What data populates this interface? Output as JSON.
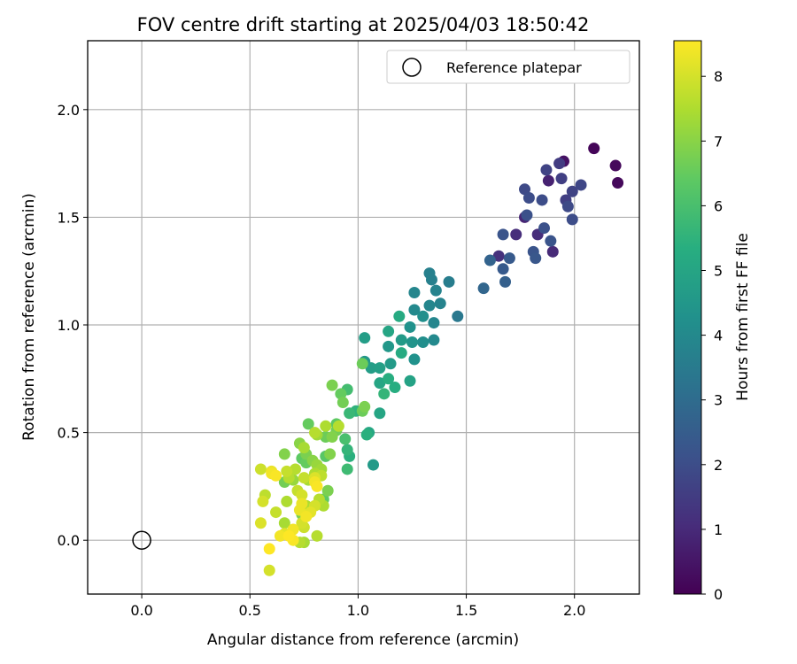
{
  "chart_data": {
    "type": "scatter",
    "title": "FOV centre drift starting at 2025/04/03 18:50:42",
    "xlabel": "Angular distance from reference (arcmin)",
    "ylabel": "Rotation from reference (arcmin)",
    "xlim": [
      -0.25,
      2.3
    ],
    "ylim": [
      -0.25,
      2.32
    ],
    "xticks": [
      0.0,
      0.5,
      1.0,
      1.5,
      2.0
    ],
    "xtick_labels": [
      "0.0",
      "0.5",
      "1.0",
      "1.5",
      "2.0"
    ],
    "yticks": [
      0.0,
      0.5,
      1.0,
      1.5,
      2.0
    ],
    "ytick_labels": [
      "0.0",
      "0.5",
      "1.0",
      "1.5",
      "2.0"
    ],
    "grid": true,
    "legend": {
      "placement": "top-right",
      "entries": [
        "Reference platepar"
      ]
    },
    "colorbar": {
      "label": "Hours from first FF file",
      "range": [
        0,
        8.55
      ],
      "ticks": [
        0,
        1,
        2,
        3,
        4,
        5,
        6,
        7,
        8
      ],
      "tick_labels": [
        "0",
        "1",
        "2",
        "3",
        "4",
        "5",
        "6",
        "7",
        "8"
      ],
      "colormap": "viridis"
    },
    "reference_point": {
      "name": "Reference platepar",
      "x": 0.0,
      "y": 0.0
    },
    "series": [
      {
        "points": [
          [
            2.09,
            1.82,
            0.1
          ],
          [
            2.19,
            1.74,
            0.2
          ],
          [
            2.2,
            1.66,
            0.2
          ],
          [
            1.95,
            1.76,
            0.4
          ],
          [
            1.88,
            1.67,
            0.8
          ],
          [
            1.77,
            1.5,
            0.9
          ],
          [
            1.73,
            1.42,
            1.1
          ],
          [
            1.9,
            1.34,
            1.0
          ],
          [
            1.65,
            1.32,
            1.2
          ],
          [
            1.83,
            1.42,
            1.1
          ],
          [
            1.93,
            1.75,
            1.5
          ],
          [
            1.87,
            1.72,
            1.7
          ],
          [
            1.94,
            1.68,
            1.6
          ],
          [
            2.03,
            1.65,
            1.8
          ],
          [
            1.99,
            1.62,
            1.7
          ],
          [
            1.96,
            1.58,
            1.6
          ],
          [
            1.97,
            1.55,
            1.9
          ],
          [
            1.99,
            1.49,
            2.0
          ],
          [
            1.77,
            1.63,
            1.9
          ],
          [
            1.79,
            1.59,
            2.0
          ],
          [
            1.85,
            1.58,
            2.0
          ],
          [
            1.78,
            1.51,
            2.1
          ],
          [
            1.86,
            1.45,
            2.1
          ],
          [
            1.89,
            1.39,
            2.2
          ],
          [
            1.81,
            1.34,
            2.2
          ],
          [
            1.82,
            1.31,
            2.3
          ],
          [
            1.67,
            1.42,
            2.2
          ],
          [
            1.7,
            1.31,
            2.4
          ],
          [
            1.67,
            1.26,
            2.4
          ],
          [
            1.68,
            1.2,
            2.6
          ],
          [
            1.58,
            1.17,
            2.8
          ],
          [
            1.61,
            1.3,
            2.7
          ],
          [
            1.46,
            1.04,
            3.4
          ],
          [
            1.42,
            1.2,
            3.6
          ],
          [
            1.33,
            1.24,
            3.7
          ],
          [
            1.34,
            1.21,
            3.7
          ],
          [
            1.36,
            1.16,
            3.8
          ],
          [
            1.38,
            1.1,
            3.8
          ],
          [
            1.33,
            1.09,
            3.9
          ],
          [
            1.26,
            1.15,
            3.9
          ],
          [
            1.26,
            1.07,
            4.0
          ],
          [
            1.35,
            1.01,
            3.9
          ],
          [
            1.35,
            0.93,
            4.0
          ],
          [
            1.3,
            1.04,
            4.2
          ],
          [
            1.24,
            0.99,
            4.3
          ],
          [
            1.3,
            0.92,
            4.2
          ],
          [
            1.25,
            0.92,
            4.4
          ],
          [
            1.26,
            0.84,
            4.3
          ],
          [
            1.2,
            0.93,
            4.6
          ],
          [
            1.14,
            0.9,
            4.5
          ],
          [
            1.15,
            0.82,
            4.6
          ],
          [
            1.1,
            0.8,
            4.8
          ],
          [
            1.06,
            0.8,
            4.7
          ],
          [
            1.03,
            0.83,
            4.5
          ],
          [
            1.03,
            0.94,
            4.7
          ],
          [
            1.14,
            0.97,
            5.0
          ],
          [
            1.19,
            1.04,
            5.2
          ],
          [
            1.2,
            0.87,
            5.2
          ],
          [
            1.24,
            0.74,
            4.9
          ],
          [
            1.07,
            0.35,
            4.6
          ],
          [
            1.1,
            0.73,
            5.0
          ],
          [
            1.14,
            0.75,
            5.3
          ],
          [
            1.17,
            0.71,
            5.3
          ],
          [
            1.12,
            0.68,
            5.6
          ],
          [
            1.1,
            0.59,
            5.0
          ],
          [
            1.05,
            0.5,
            5.1
          ],
          [
            1.04,
            0.49,
            5.4
          ],
          [
            0.99,
            0.6,
            5.5
          ],
          [
            0.96,
            0.59,
            5.7
          ],
          [
            0.96,
            0.39,
            5.4
          ],
          [
            0.95,
            0.42,
            5.6
          ],
          [
            0.95,
            0.33,
            5.8
          ],
          [
            0.94,
            0.47,
            6.0
          ],
          [
            0.95,
            0.7,
            5.9
          ],
          [
            0.92,
            0.68,
            6.5
          ],
          [
            0.93,
            0.64,
            6.7
          ],
          [
            0.88,
            0.72,
            6.8
          ],
          [
            1.02,
            0.6,
            6.6
          ],
          [
            1.03,
            0.62,
            6.8
          ],
          [
            1.02,
            0.82,
            6.6
          ],
          [
            0.9,
            0.54,
            6.4
          ],
          [
            0.9,
            0.51,
            6.7
          ],
          [
            0.85,
            0.53,
            7.5
          ],
          [
            0.91,
            0.53,
            7.6
          ],
          [
            0.85,
            0.48,
            6.6
          ],
          [
            0.88,
            0.48,
            6.9
          ],
          [
            0.87,
            0.4,
            6.9
          ],
          [
            0.85,
            0.39,
            6.3
          ],
          [
            0.81,
            0.49,
            7.3
          ],
          [
            0.8,
            0.5,
            7.6
          ],
          [
            0.77,
            0.54,
            6.5
          ],
          [
            0.73,
            0.45,
            7.0
          ],
          [
            0.75,
            0.43,
            7.4
          ],
          [
            0.76,
            0.4,
            6.8
          ],
          [
            0.74,
            0.38,
            6.4
          ],
          [
            0.76,
            0.36,
            6.5
          ],
          [
            0.79,
            0.37,
            7.0
          ],
          [
            0.81,
            0.35,
            7.2
          ],
          [
            0.83,
            0.33,
            7.3
          ],
          [
            0.86,
            0.23,
            6.8
          ],
          [
            0.83,
            0.3,
            7.7
          ],
          [
            0.8,
            0.29,
            8.1
          ],
          [
            0.8,
            0.27,
            8.4
          ],
          [
            0.81,
            0.25,
            8.5
          ],
          [
            0.8,
            0.31,
            7.5
          ],
          [
            0.77,
            0.28,
            7.4
          ],
          [
            0.75,
            0.29,
            7.8
          ],
          [
            0.71,
            0.33,
            7.6
          ],
          [
            0.67,
            0.32,
            7.8
          ],
          [
            0.68,
            0.29,
            7.6
          ],
          [
            0.7,
            0.28,
            7.2
          ],
          [
            0.66,
            0.27,
            6.7
          ],
          [
            0.66,
            0.4,
            6.9
          ],
          [
            0.72,
            0.23,
            7.8
          ],
          [
            0.74,
            0.21,
            8.0
          ],
          [
            0.74,
            0.17,
            8.3
          ],
          [
            0.76,
            0.16,
            7.5
          ],
          [
            0.78,
            0.13,
            8.2
          ],
          [
            0.8,
            0.16,
            8.0
          ],
          [
            0.82,
            0.19,
            7.6
          ],
          [
            0.84,
            0.19,
            6.4
          ],
          [
            0.84,
            0.16,
            7.5
          ],
          [
            0.76,
            0.11,
            8.4
          ],
          [
            0.74,
            0.12,
            6.8
          ],
          [
            0.73,
            0.14,
            8.3
          ],
          [
            0.74,
            0.08,
            8.0
          ],
          [
            0.75,
            0.06,
            7.9
          ],
          [
            0.7,
            0.05,
            8.4
          ],
          [
            0.66,
            0.08,
            7.4
          ],
          [
            0.7,
            0.0,
            8.5
          ],
          [
            0.68,
            0.02,
            8.6
          ],
          [
            0.64,
            0.02,
            8.4
          ],
          [
            0.66,
            0.03,
            8.2
          ],
          [
            0.73,
            -0.01,
            7.6
          ],
          [
            0.75,
            -0.01,
            7.4
          ],
          [
            0.81,
            0.02,
            7.6
          ],
          [
            0.62,
            0.3,
            8.5
          ],
          [
            0.6,
            0.32,
            8.3
          ],
          [
            0.55,
            0.33,
            7.9
          ],
          [
            0.62,
            0.13,
            7.8
          ],
          [
            0.67,
            0.18,
            7.5
          ],
          [
            0.56,
            0.18,
            8.0
          ],
          [
            0.57,
            0.21,
            7.7
          ],
          [
            0.55,
            0.08,
            8.1
          ],
          [
            0.59,
            -0.04,
            8.6
          ],
          [
            0.59,
            -0.14,
            8.0
          ],
          [
            0.6,
            0.31,
            8.4
          ]
        ]
      }
    ]
  }
}
